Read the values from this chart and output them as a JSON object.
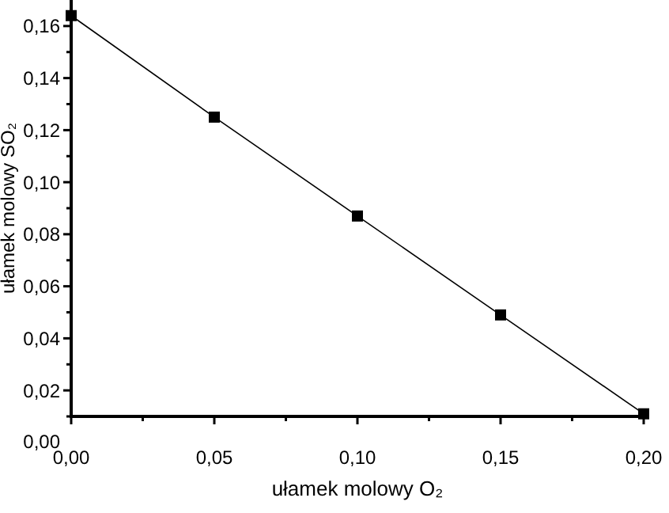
{
  "chart_data": {
    "type": "line",
    "xlabel": "ułamek molowy O₂",
    "ylabel": "ułamek molowy SO₂",
    "x": [
      0,
      0.05,
      0.1,
      0.15,
      0.2
    ],
    "series": [
      {
        "color": "#000000",
        "values": [
          0.164,
          0.125,
          0.087,
          0.049,
          0.011
        ]
      }
    ],
    "marker": "square",
    "line_style": "solid",
    "grid": false,
    "annotations": [
      "0,00"
    ],
    "xlim": [
      0,
      0.2
    ],
    "xticks": [
      {
        "value": 0,
        "label": "0,00"
      },
      {
        "value": 0.025,
        "label": null
      },
      {
        "value": 0.05,
        "label": "0,05"
      },
      {
        "value": 0.075,
        "label": null
      },
      {
        "value": 0.1,
        "label": "0,10"
      },
      {
        "value": 0.125,
        "label": null
      },
      {
        "value": 0.15,
        "label": "0,15"
      },
      {
        "value": 0.175,
        "label": null
      },
      {
        "value": 0.2,
        "label": "0,20"
      }
    ],
    "ylim": [
      0.01,
      0.17
    ],
    "yticks": [
      {
        "value": 0.01,
        "label": null
      },
      {
        "value": 0.02,
        "label": "0,02"
      },
      {
        "value": 0.03,
        "label": null
      },
      {
        "value": 0.04,
        "label": "0,04"
      },
      {
        "value": 0.05,
        "label": null
      },
      {
        "value": 0.06,
        "label": "0,06"
      },
      {
        "value": 0.07,
        "label": null
      },
      {
        "value": 0.08,
        "label": "0,08"
      },
      {
        "value": 0.09,
        "label": null
      },
      {
        "value": 0.1,
        "label": "0,10"
      },
      {
        "value": 0.11,
        "label": null
      },
      {
        "value": 0.12,
        "label": "0,12"
      },
      {
        "value": 0.13,
        "label": null
      },
      {
        "value": 0.14,
        "label": "0,14"
      },
      {
        "value": 0.15,
        "label": null
      },
      {
        "value": 0.16,
        "label": "0,16"
      }
    ]
  }
}
